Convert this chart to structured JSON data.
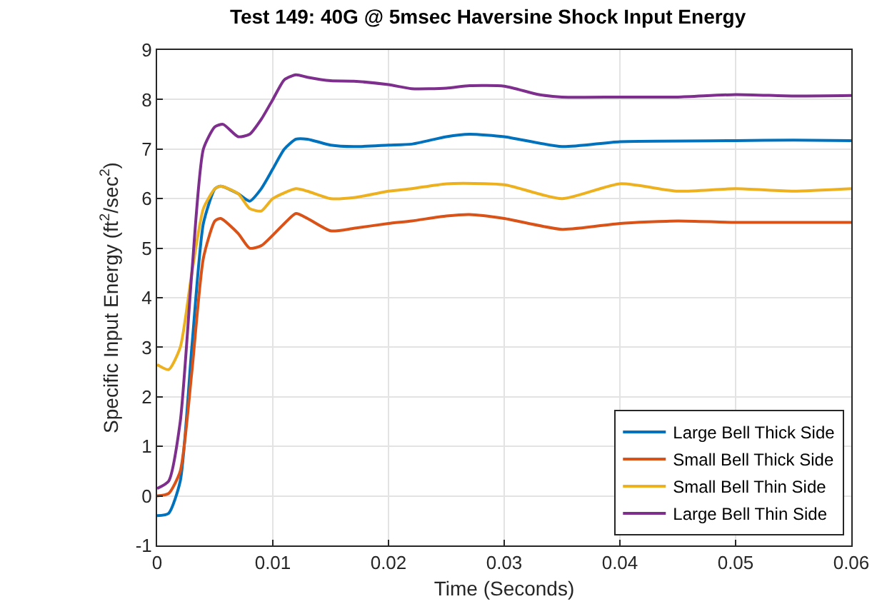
{
  "chart_data": {
    "type": "line",
    "title": "Test 149: 40G @ 5msec Haversine Shock Input Energy",
    "xlabel": "Time (Seconds)",
    "ylabel": "Specific Input Energy (ft$^{2}$/sec$^{2}$)",
    "xlim": [
      0,
      0.06
    ],
    "xticks": [
      0,
      0.01,
      0.02,
      0.03,
      0.04,
      0.05,
      0.06
    ],
    "ylim": [
      -1,
      9
    ],
    "yticks": [
      -1,
      0,
      1,
      2,
      3,
      4,
      5,
      6,
      7,
      8,
      9
    ],
    "grid": true,
    "legend": "bottom right",
    "marker": "none",
    "line_style": "solid",
    "series": [
      {
        "name": "Large Bell Thick Side",
        "color": "#0072bd",
        "x": [
          0,
          0.001,
          0.002,
          0.003,
          0.004,
          0.005,
          0.0055,
          0.007,
          0.008,
          0.009,
          0.01,
          0.011,
          0.012,
          0.013,
          0.015,
          0.017,
          0.02,
          0.022,
          0.025,
          0.027,
          0.03,
          0.035,
          0.04,
          0.05,
          0.055,
          0.06
        ],
        "values": [
          -0.4,
          -0.35,
          0.3,
          3.0,
          5.5,
          6.2,
          6.25,
          6.1,
          5.95,
          6.2,
          6.6,
          7.0,
          7.2,
          7.2,
          7.08,
          7.05,
          7.08,
          7.1,
          7.25,
          7.3,
          7.25,
          7.05,
          7.15,
          7.17,
          7.18,
          7.17
        ]
      },
      {
        "name": "Small Bell Thick Side",
        "color": "#d95319",
        "x": [
          0,
          0.001,
          0.002,
          0.003,
          0.004,
          0.005,
          0.0055,
          0.007,
          0.008,
          0.009,
          0.011,
          0.012,
          0.013,
          0.015,
          0.017,
          0.02,
          0.022,
          0.025,
          0.027,
          0.03,
          0.035,
          0.04,
          0.045,
          0.05,
          0.06
        ],
        "values": [
          0.0,
          0.05,
          0.5,
          2.5,
          4.8,
          5.55,
          5.6,
          5.3,
          5.0,
          5.05,
          5.5,
          5.7,
          5.6,
          5.35,
          5.4,
          5.5,
          5.55,
          5.65,
          5.68,
          5.6,
          5.38,
          5.5,
          5.55,
          5.52,
          5.52
        ]
      },
      {
        "name": "Small Bell Thin Side",
        "color": "#edb120",
        "x": [
          0,
          0.001,
          0.002,
          0.003,
          0.004,
          0.005,
          0.0055,
          0.007,
          0.008,
          0.009,
          0.01,
          0.012,
          0.013,
          0.015,
          0.017,
          0.02,
          0.022,
          0.025,
          0.03,
          0.035,
          0.04,
          0.045,
          0.05,
          0.055,
          0.06
        ],
        "values": [
          2.65,
          2.55,
          3.0,
          4.5,
          5.8,
          6.2,
          6.25,
          6.1,
          5.8,
          5.75,
          6.0,
          6.2,
          6.15,
          6.0,
          6.02,
          6.15,
          6.2,
          6.3,
          6.28,
          6.0,
          6.3,
          6.15,
          6.2,
          6.15,
          6.2
        ]
      },
      {
        "name": "Large Bell Thin Side",
        "color": "#7e2f8e",
        "x": [
          0,
          0.001,
          0.002,
          0.003,
          0.004,
          0.005,
          0.0057,
          0.007,
          0.008,
          0.009,
          0.01,
          0.011,
          0.012,
          0.013,
          0.015,
          0.017,
          0.02,
          0.022,
          0.025,
          0.027,
          0.03,
          0.033,
          0.035,
          0.04,
          0.045,
          0.05,
          0.055,
          0.06
        ],
        "values": [
          0.15,
          0.3,
          1.5,
          4.5,
          7.0,
          7.45,
          7.5,
          7.25,
          7.3,
          7.6,
          8.0,
          8.4,
          8.5,
          8.45,
          8.38,
          8.37,
          8.3,
          8.22,
          8.23,
          8.28,
          8.27,
          8.1,
          8.05,
          8.05,
          8.05,
          8.1,
          8.07,
          8.08
        ]
      }
    ]
  }
}
